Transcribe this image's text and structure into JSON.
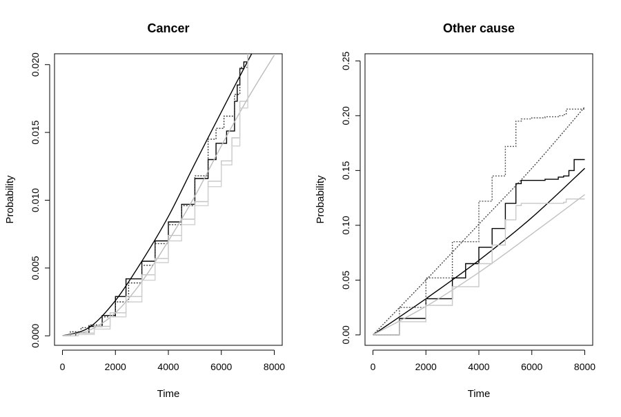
{
  "chart_data": [
    {
      "type": "line",
      "title": "Cancer",
      "xlabel": "Time",
      "ylabel": "Probability",
      "xlim": [
        -300,
        8300
      ],
      "ylim": [
        -0.0007,
        0.0208
      ],
      "xticks": [
        "0",
        "2000",
        "4000",
        "6000",
        "8000"
      ],
      "yticks": [
        "0.000",
        "0.005",
        "0.010",
        "0.015",
        "0.020"
      ],
      "grid": false,
      "series": [
        {
          "color": "#000000",
          "style": "solid",
          "shape": "smooth",
          "x": [
            0,
            1000,
            2000,
            3000,
            4000,
            5000,
            6000,
            6500,
            7200
          ],
          "y": [
            0.0,
            0.0006,
            0.0026,
            0.0055,
            0.0088,
            0.0127,
            0.0165,
            0.0184,
            0.021
          ]
        },
        {
          "color": "#000000",
          "style": "solid",
          "shape": "step",
          "x": [
            0,
            500,
            1000,
            1500,
            2000,
            2400,
            3000,
            3500,
            4000,
            4500,
            5000,
            5500,
            5800,
            6200,
            6500,
            6600,
            6700,
            6850,
            7000
          ],
          "y": [
            0.0,
            0.0002,
            0.0007,
            0.0015,
            0.0029,
            0.0042,
            0.0055,
            0.007,
            0.0084,
            0.0097,
            0.0116,
            0.013,
            0.0142,
            0.0151,
            0.0173,
            0.0185,
            0.0197,
            0.0202,
            0.021
          ]
        },
        {
          "color": "#333333",
          "style": "dotted",
          "shape": "step",
          "x": [
            0,
            300,
            700,
            1000,
            1500,
            2000,
            2500,
            3000,
            3500,
            4000,
            4500,
            5000,
            5500,
            5800,
            6100,
            6500,
            6700,
            7000
          ],
          "y": [
            0.0,
            0.0003,
            0.0006,
            0.0008,
            0.0014,
            0.0025,
            0.0039,
            0.0052,
            0.0068,
            0.0082,
            0.0096,
            0.0118,
            0.0145,
            0.0153,
            0.0162,
            0.0178,
            0.0198,
            0.021
          ]
        },
        {
          "color": "#bbbbbb",
          "style": "solid",
          "shape": "smooth",
          "x": [
            0,
            1000,
            2000,
            3000,
            4000,
            5000,
            6000,
            7000,
            8000
          ],
          "y": [
            0.0,
            0.0004,
            0.0017,
            0.004,
            0.007,
            0.0103,
            0.014,
            0.0175,
            0.0207
          ]
        },
        {
          "color": "#c4c4c4",
          "style": "solid",
          "shape": "step",
          "x": [
            0,
            600,
            1200,
            1800,
            2400,
            3000,
            3500,
            4000,
            4500,
            5000,
            5500,
            6000,
            6400,
            6700,
            7000
          ],
          "y": [
            0.0,
            0.0002,
            0.0007,
            0.0017,
            0.0029,
            0.0045,
            0.0057,
            0.0074,
            0.0086,
            0.0099,
            0.0114,
            0.0129,
            0.0146,
            0.0173,
            0.021
          ]
        },
        {
          "color": "#d0d0d0",
          "style": "solid",
          "shape": "step",
          "x": [
            0,
            600,
            1200,
            1800,
            2400,
            3000,
            3500,
            4000,
            4500,
            5000,
            5500,
            6000,
            6400,
            6700,
            7000
          ],
          "y": [
            0.0,
            0.0001,
            0.0005,
            0.0014,
            0.0025,
            0.0041,
            0.0054,
            0.007,
            0.0082,
            0.0096,
            0.011,
            0.0126,
            0.014,
            0.0168,
            0.021
          ]
        }
      ]
    },
    {
      "type": "line",
      "title": "Other cause",
      "xlabel": "Time",
      "ylabel": "Probability",
      "xlim": [
        -300,
        8300
      ],
      "ylim": [
        -0.0095,
        0.2565
      ],
      "xticks": [
        "0",
        "2000",
        "4000",
        "6000",
        "8000"
      ],
      "yticks": [
        "0.00",
        "0.05",
        "0.10",
        "0.15",
        "0.20",
        "0.25"
      ],
      "grid": false,
      "series": [
        {
          "color": "#000000",
          "style": "solid",
          "shape": "smooth",
          "x": [
            0,
            2000,
            4000,
            6000,
            8000
          ],
          "y": [
            0.0,
            0.033,
            0.068,
            0.107,
            0.152
          ]
        },
        {
          "color": "#000000",
          "style": "solid",
          "shape": "step",
          "x": [
            0,
            1000,
            2000,
            3000,
            3500,
            4000,
            4500,
            5000,
            5400,
            5600,
            6000,
            6500,
            7000,
            7200,
            7400,
            7600,
            8000
          ],
          "y": [
            0.0,
            0.015,
            0.033,
            0.052,
            0.065,
            0.08,
            0.097,
            0.12,
            0.138,
            0.141,
            0.141,
            0.142,
            0.144,
            0.145,
            0.15,
            0.16,
            0.16
          ]
        },
        {
          "color": "#444444",
          "style": "dotted",
          "shape": "smooth",
          "x": [
            0,
            2000,
            4000,
            6000,
            8000
          ],
          "y": [
            0.0,
            0.05,
            0.101,
            0.152,
            0.208
          ]
        },
        {
          "color": "#555555",
          "style": "dotted",
          "shape": "step",
          "x": [
            0,
            1000,
            2000,
            3000,
            4000,
            4500,
            5000,
            5400,
            5600,
            6000,
            6500,
            7000,
            7200,
            7300,
            8000
          ],
          "y": [
            0.0,
            0.025,
            0.052,
            0.085,
            0.122,
            0.145,
            0.172,
            0.195,
            0.197,
            0.198,
            0.199,
            0.2,
            0.201,
            0.206,
            0.206
          ]
        },
        {
          "color": "#c0c0c0",
          "style": "solid",
          "shape": "smooth",
          "x": [
            0,
            2000,
            4000,
            6000,
            8000
          ],
          "y": [
            0.0,
            0.026,
            0.057,
            0.092,
            0.128
          ]
        },
        {
          "color": "#c8c8c8",
          "style": "solid",
          "shape": "step",
          "x": [
            0,
            1000,
            2000,
            3000,
            4000,
            4500,
            5000,
            5400,
            5600,
            6000,
            6500,
            7000,
            7200,
            7300,
            8000
          ],
          "y": [
            0.0,
            0.012,
            0.027,
            0.044,
            0.065,
            0.082,
            0.105,
            0.118,
            0.12,
            0.12,
            0.12,
            0.12,
            0.121,
            0.124,
            0.124
          ]
        }
      ]
    }
  ]
}
